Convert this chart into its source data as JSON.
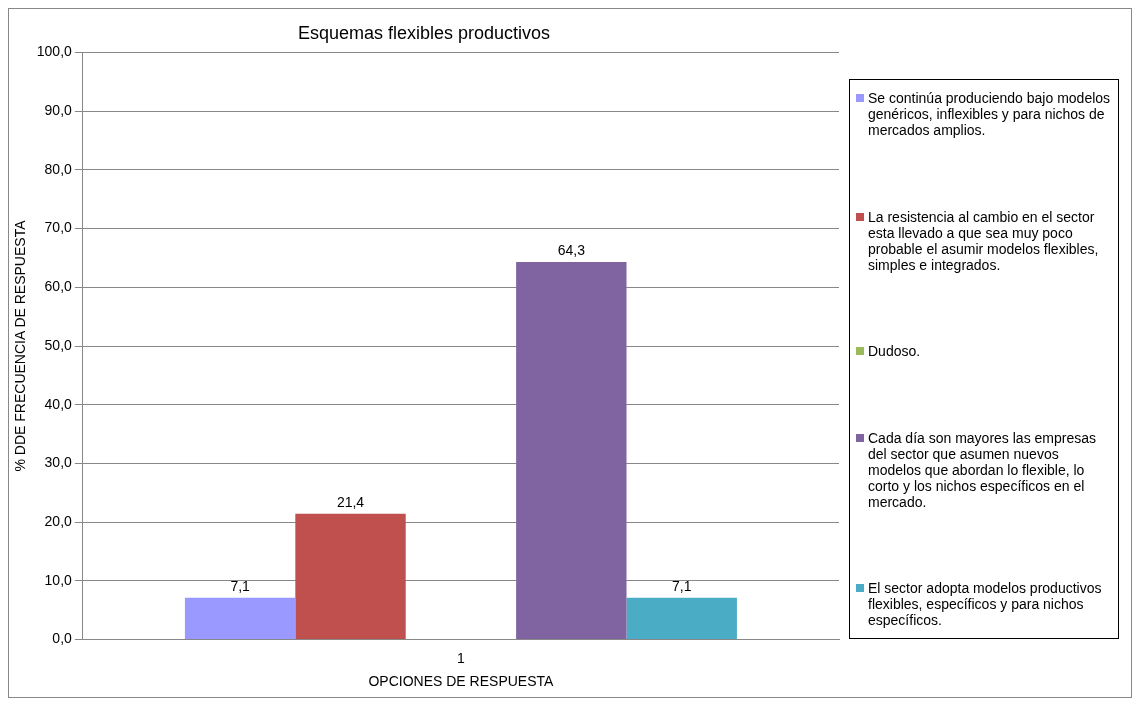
{
  "chart_data": {
    "type": "bar",
    "title": "Esquemas flexibles productivos",
    "xlabel": "OPCIONES DE RESPUESTA",
    "ylabel": "% DDE FRECUENCIA DE RESPUESTA",
    "categories": [
      "1"
    ],
    "series": [
      {
        "name": "Se continúa produciendo bajo modelos genéricos, inflexibles y para nichos de mercados amplios.",
        "color": "#9999ff",
        "values": [
          7.1
        ],
        "value_labels": [
          "7,1"
        ]
      },
      {
        "name": "La resistencia al cambio en el sector esta llevado a que sea muy poco probable el asumir modelos flexibles, simples e integrados.",
        "color": "#c0504d",
        "values": [
          21.4
        ],
        "value_labels": [
          "21,4"
        ]
      },
      {
        "name": "Dudoso.",
        "color": "#9bbb59",
        "values": [
          0
        ],
        "value_labels": [
          null
        ]
      },
      {
        "name": "Cada día son mayores las empresas del sector que asumen nuevos modelos que abordan lo flexible, lo corto y los nichos específicos en el mercado.",
        "color": "#8064a2",
        "values": [
          64.3
        ],
        "value_labels": [
          "64,3"
        ]
      },
      {
        "name": "El sector adopta modelos productivos flexibles, específicos y para nichos específicos.",
        "color": "#4bacc6",
        "values": [
          7.1
        ],
        "value_labels": [
          "7,1"
        ]
      }
    ],
    "ylim": [
      0,
      100
    ],
    "yticks": [
      {
        "value": 0,
        "label": "0,0"
      },
      {
        "value": 10,
        "label": "10,0"
      },
      {
        "value": 20,
        "label": "20,0"
      },
      {
        "value": 30,
        "label": "30,0"
      },
      {
        "value": 40,
        "label": "40,0"
      },
      {
        "value": 50,
        "label": "50,0"
      },
      {
        "value": 60,
        "label": "60,0"
      },
      {
        "value": 70,
        "label": "70,0"
      },
      {
        "value": 80,
        "label": "80,0"
      },
      {
        "value": 90,
        "label": "90,0"
      },
      {
        "value": 100,
        "label": "100,0"
      }
    ],
    "grid": "y",
    "legend": "right"
  }
}
